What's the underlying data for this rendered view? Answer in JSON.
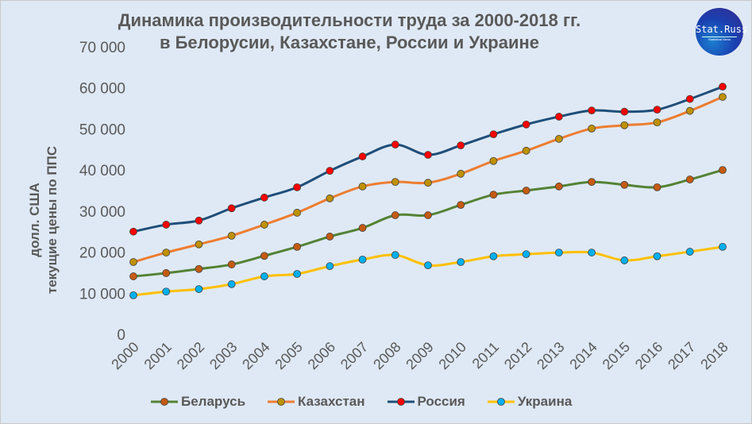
{
  "logo": {
    "text": "Stat.Russ",
    "subtext": "Statistical News"
  },
  "chart_data": {
    "type": "line",
    "title": [
      "Динамика производительности труда за 2000-2018 гг.",
      "в Белорусии, Казахстане, России и Украине"
    ],
    "ylabel": [
      "долл. США",
      "текущие цены по ППС"
    ],
    "xlabel": "",
    "ylim": [
      0,
      70000
    ],
    "yticks": [
      0,
      10000,
      20000,
      30000,
      40000,
      50000,
      60000,
      70000
    ],
    "ytick_labels": [
      "0",
      "10 000",
      "20 000",
      "30 000",
      "40 000",
      "50 000",
      "60 000",
      "70 000"
    ],
    "grid": false,
    "legend": "bottom",
    "categories": [
      "2000",
      "2001",
      "2002",
      "2003",
      "2004",
      "2005",
      "2006",
      "2007",
      "2008",
      "2009",
      "2010",
      "2011",
      "2012",
      "2013",
      "2014",
      "2015",
      "2016",
      "2017",
      "2018"
    ],
    "series": [
      {
        "name": "Беларусь",
        "line_color": "#548235",
        "marker_color": "#c55a11",
        "values": [
          14100,
          14900,
          15900,
          17000,
          19100,
          21300,
          23800,
          25900,
          29000,
          29000,
          31500,
          34000,
          35000,
          36000,
          37100,
          36400,
          35800,
          37700,
          40000
        ]
      },
      {
        "name": "Казахстан",
        "line_color": "#ed7d31",
        "marker_color": "#bf9000",
        "values": [
          17600,
          19900,
          21900,
          24000,
          26700,
          29600,
          33100,
          36000,
          37100,
          36900,
          39100,
          42200,
          44700,
          47600,
          50100,
          50900,
          51600,
          54400,
          57800
        ]
      },
      {
        "name": "Россия",
        "line_color": "#1f4e79",
        "marker_color": "#ff0000",
        "values": [
          25000,
          26700,
          27700,
          30700,
          33300,
          35800,
          39800,
          43300,
          46200,
          43700,
          46000,
          48700,
          51100,
          53000,
          54500,
          54200,
          54700,
          57300,
          60300
        ]
      },
      {
        "name": "Украина",
        "line_color": "#ffc000",
        "marker_color": "#00b0f0",
        "values": [
          9500,
          10400,
          11000,
          12200,
          14100,
          14700,
          16600,
          18200,
          19300,
          16800,
          17600,
          19000,
          19500,
          19900,
          19900,
          18000,
          19000,
          20100,
          21300
        ]
      }
    ]
  }
}
